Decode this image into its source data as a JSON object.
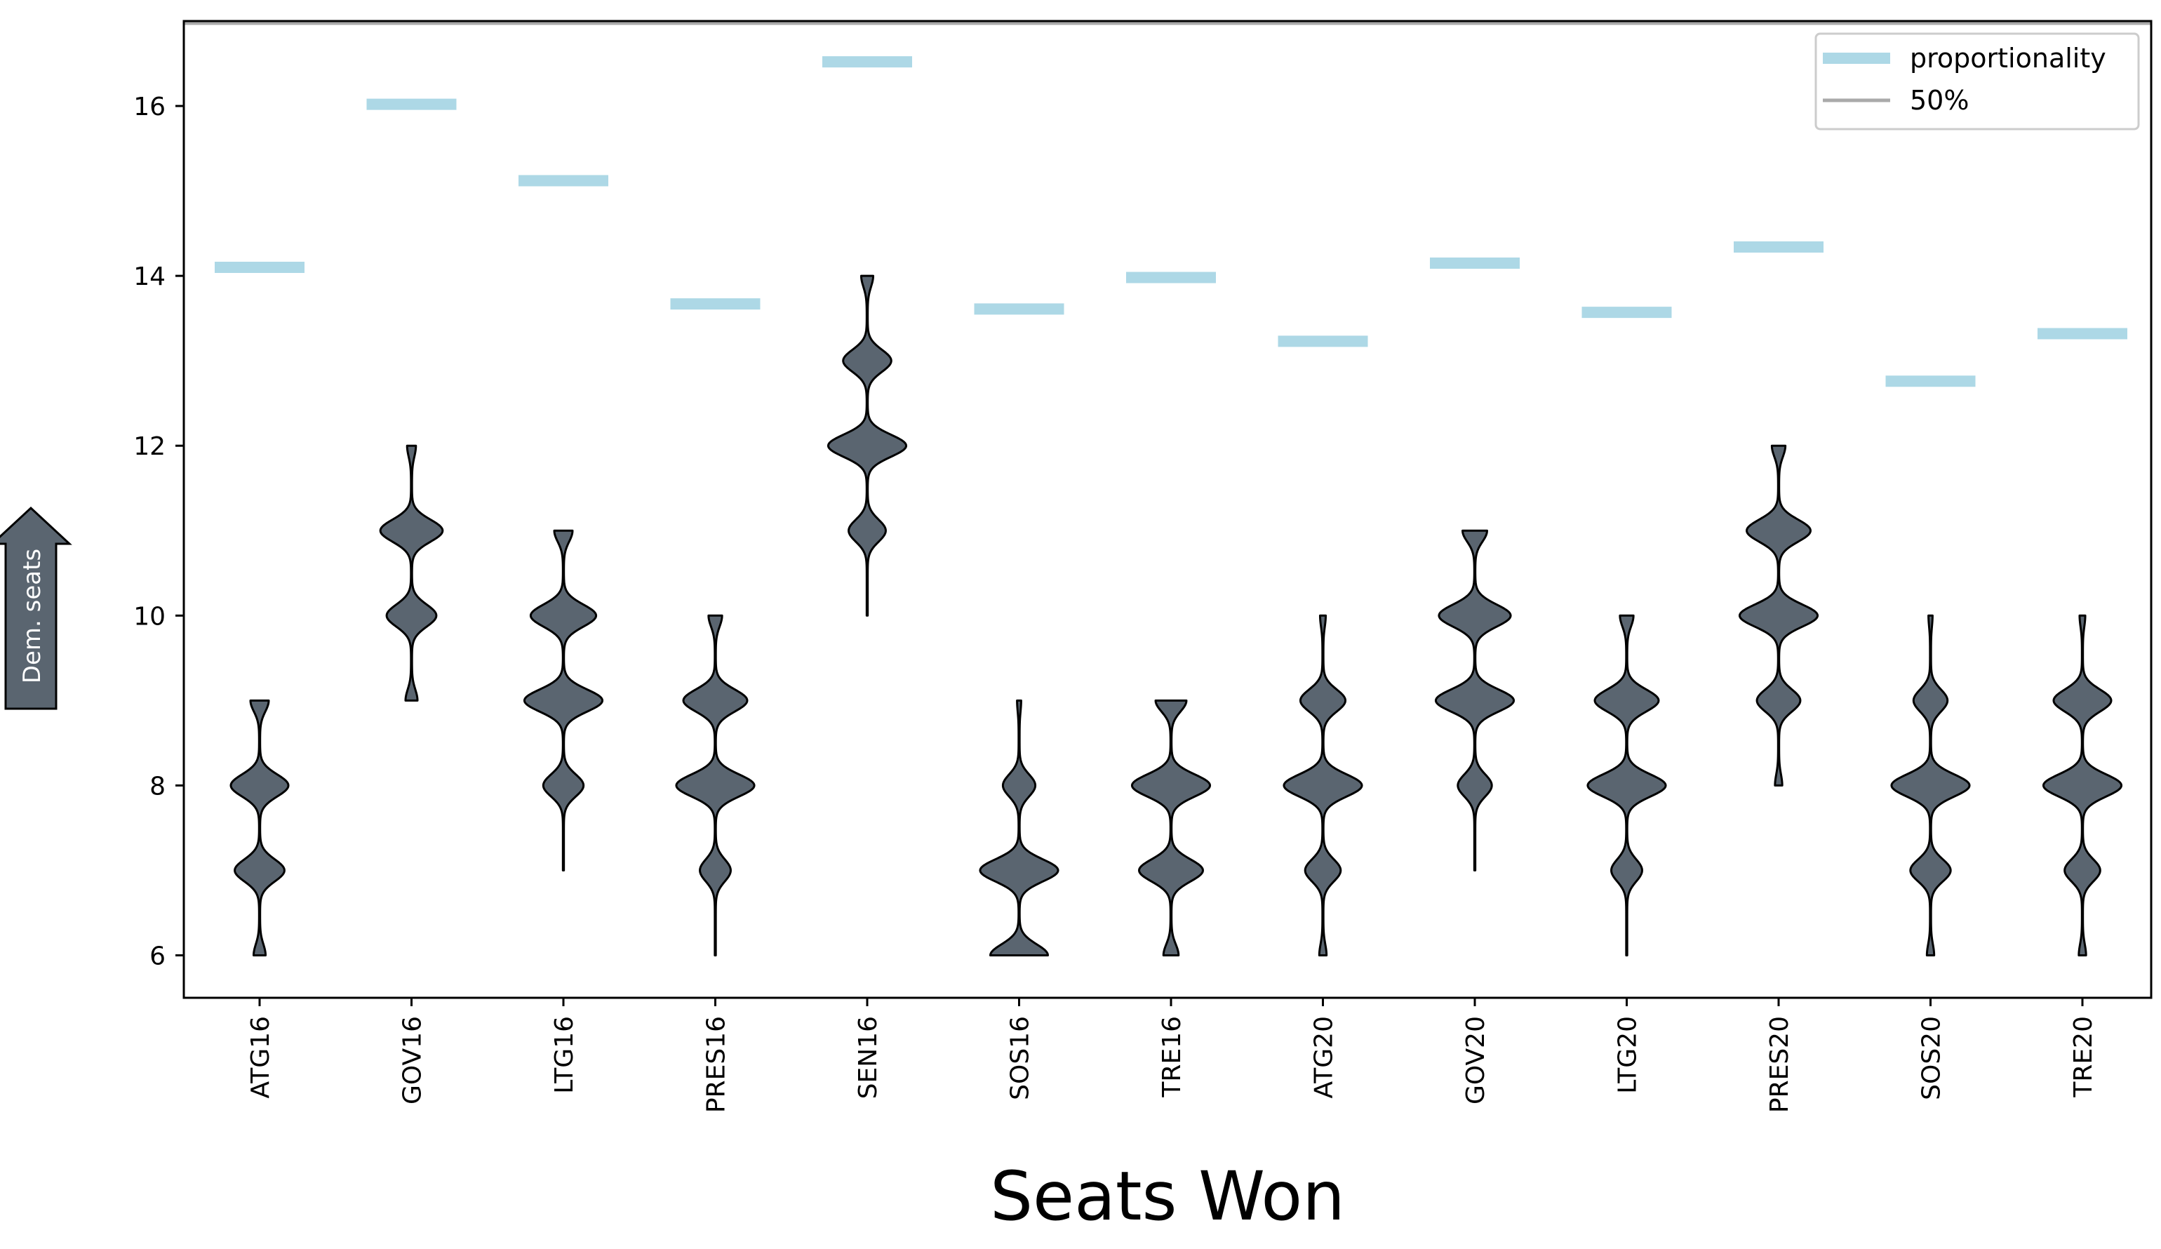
{
  "chart_data": {
    "type": "violin",
    "title": "",
    "xlabel": "Seats Won",
    "ylabel": "",
    "y_indicator": "Dem. seats",
    "ylim": [
      5.5,
      17.0
    ],
    "yticks": [
      6,
      8,
      10,
      12,
      14,
      16
    ],
    "grid": false,
    "legend_position": "top-right",
    "colors": {
      "violin_fill": "#5a6570",
      "violin_edge": "#000000",
      "proportionality": "#add8e6",
      "fifty_percent": "#aaaaaa",
      "indicator_fill": "#5a6570"
    },
    "legend": [
      {
        "label": "proportionality",
        "kind": "proportionality"
      },
      {
        "label": "50%",
        "kind": "fifty"
      }
    ],
    "categories": [
      "ATG16",
      "GOV16",
      "LTG16",
      "PRES16",
      "SEN16",
      "SOS16",
      "TRE16",
      "ATG20",
      "GOV20",
      "LTG20",
      "PRES20",
      "SOS20",
      "TRE20"
    ],
    "proportionality": [
      14.1,
      16.02,
      15.12,
      13.67,
      16.52,
      13.61,
      13.98,
      13.23,
      14.15,
      13.57,
      14.34,
      12.76,
      13.32
    ],
    "fifty_percent_line": 17.0,
    "distributions": [
      {
        "min": 6,
        "max": 9,
        "weights": {
          "6": 0.14,
          "7": 0.62,
          "8": 0.72,
          "9": 0.22
        }
      },
      {
        "min": 9,
        "max": 12,
        "weights": {
          "9": 0.14,
          "10": 0.62,
          "11": 0.78,
          "12": 0.1
        }
      },
      {
        "min": 7,
        "max": 11,
        "weights": {
          "8": 0.5,
          "9": 0.98,
          "10": 0.82,
          "11": 0.22
        }
      },
      {
        "min": 6,
        "max": 10,
        "weights": {
          "7": 0.38,
          "8": 0.98,
          "9": 0.8,
          "10": 0.16
        }
      },
      {
        "min": 10,
        "max": 14,
        "weights": {
          "11": 0.46,
          "12": 0.98,
          "13": 0.6,
          "14": 0.14
        }
      },
      {
        "min": 6,
        "max": 9,
        "weights": {
          "6": 0.72,
          "7": 0.98,
          "8": 0.4,
          "9": 0.04
        }
      },
      {
        "min": 6,
        "max": 9,
        "weights": {
          "6": 0.18,
          "7": 0.8,
          "8": 0.98,
          "9": 0.38
        }
      },
      {
        "min": 6,
        "max": 10,
        "weights": {
          "6": 0.08,
          "7": 0.44,
          "8": 0.98,
          "9": 0.56,
          "10": 0.06
        }
      },
      {
        "min": 7,
        "max": 11,
        "weights": {
          "8": 0.42,
          "9": 0.98,
          "10": 0.9,
          "11": 0.3
        }
      },
      {
        "min": 6,
        "max": 10,
        "weights": {
          "7": 0.38,
          "8": 0.98,
          "9": 0.8,
          "10": 0.16
        }
      },
      {
        "min": 8,
        "max": 12,
        "weights": {
          "8": 0.08,
          "9": 0.54,
          "10": 0.98,
          "11": 0.8,
          "12": 0.16
        }
      },
      {
        "min": 6,
        "max": 10,
        "weights": {
          "6": 0.08,
          "7": 0.5,
          "8": 0.98,
          "9": 0.42,
          "10": 0.04
        }
      },
      {
        "min": 6,
        "max": 10,
        "weights": {
          "6": 0.08,
          "7": 0.44,
          "8": 0.98,
          "9": 0.72,
          "10": 0.06
        }
      }
    ]
  }
}
